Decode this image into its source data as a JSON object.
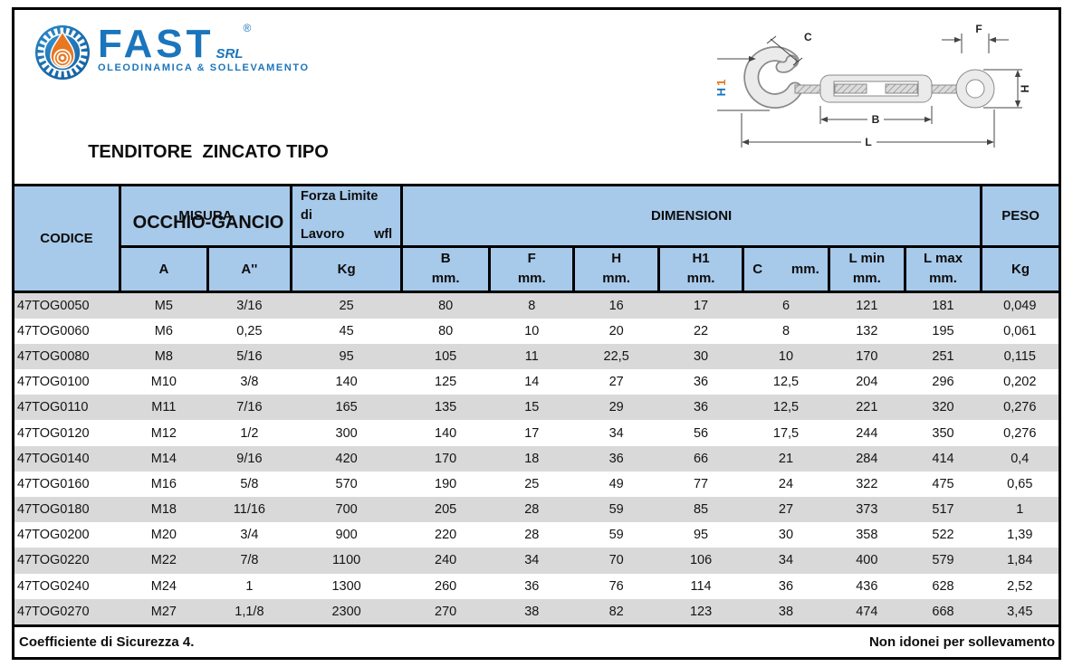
{
  "colors": {
    "brand_blue": "#1b75bc",
    "drop_orange": "#e87722",
    "header_bg": "#a7c9ea",
    "row_alt_bg": "#d9d9d9",
    "border_black": "#000000"
  },
  "header": {
    "logo": {
      "brand": "FAST",
      "suffix": "SRL",
      "registered": "®",
      "tagline": "OLEODINAMICA & SOLLEVAMENTO"
    },
    "title_line1": "TENDITORE  ZINCATO TIPO",
    "title_line2": "OCCHIO-GANCIO"
  },
  "diagram": {
    "labels": {
      "c": "C",
      "f": "F",
      "h": "H",
      "h1_h": "H",
      "h1_1": "1",
      "b": "B",
      "l": "L"
    }
  },
  "table": {
    "head": {
      "codice": "CODICE",
      "misura": "MISURA",
      "wfl_line1": "Forza Limite di",
      "wfl_line2a": "Lavoro",
      "wfl_line2b": "wfl",
      "dimensioni": "DIMENSIONI",
      "peso": "PESO",
      "sub_a": "A",
      "sub_a2": "A''",
      "sub_kg": "Kg",
      "sub_b": "B",
      "sub_f": "F",
      "sub_h": "H",
      "sub_h1": "H1",
      "sub_c": "C",
      "sub_c_mm": "mm.",
      "sub_lmin": "L min",
      "sub_lmax": "L max",
      "mm": "mm.",
      "sub_peso_kg": "Kg"
    },
    "rows": [
      [
        "47TOG0050",
        "M5",
        "3/16",
        "25",
        "80",
        "8",
        "16",
        "17",
        "6",
        "121",
        "181",
        "0,049"
      ],
      [
        "47TOG0060",
        "M6",
        "0,25",
        "45",
        "80",
        "10",
        "20",
        "22",
        "8",
        "132",
        "195",
        "0,061"
      ],
      [
        "47TOG0080",
        "M8",
        "5/16",
        "95",
        "105",
        "11",
        "22,5",
        "30",
        "10",
        "170",
        "251",
        "0,115"
      ],
      [
        "47TOG0100",
        "M10",
        "3/8",
        "140",
        "125",
        "14",
        "27",
        "36",
        "12,5",
        "204",
        "296",
        "0,202"
      ],
      [
        "47TOG0110",
        "M11",
        "7/16",
        "165",
        "135",
        "15",
        "29",
        "36",
        "12,5",
        "221",
        "320",
        "0,276"
      ],
      [
        "47TOG0120",
        "M12",
        "1/2",
        "300",
        "140",
        "17",
        "34",
        "56",
        "17,5",
        "244",
        "350",
        "0,276"
      ],
      [
        "47TOG0140",
        "M14",
        "9/16",
        "420",
        "170",
        "18",
        "36",
        "66",
        "21",
        "284",
        "414",
        "0,4"
      ],
      [
        "47TOG0160",
        "M16",
        "5/8",
        "570",
        "190",
        "25",
        "49",
        "77",
        "24",
        "322",
        "475",
        "0,65"
      ],
      [
        "47TOG0180",
        "M18",
        "11/16",
        "700",
        "205",
        "28",
        "59",
        "85",
        "27",
        "373",
        "517",
        "1"
      ],
      [
        "47TOG0200",
        "M20",
        "3/4",
        "900",
        "220",
        "28",
        "59",
        "95",
        "30",
        "358",
        "522",
        "1,39"
      ],
      [
        "47TOG0220",
        "M22",
        "7/8",
        "1100",
        "240",
        "34",
        "70",
        "106",
        "34",
        "400",
        "579",
        "1,84"
      ],
      [
        "47TOG0240",
        "M24",
        "1",
        "1300",
        "260",
        "36",
        "76",
        "114",
        "36",
        "436",
        "628",
        "2,52"
      ],
      [
        "47TOG0270",
        "M27",
        "1,1/8",
        "2300",
        "270",
        "38",
        "82",
        "123",
        "38",
        "474",
        "668",
        "3,45"
      ]
    ],
    "footer_left": "Coefficiente di Sicurezza 4.",
    "footer_right": "Non idonei per sollevamento"
  }
}
